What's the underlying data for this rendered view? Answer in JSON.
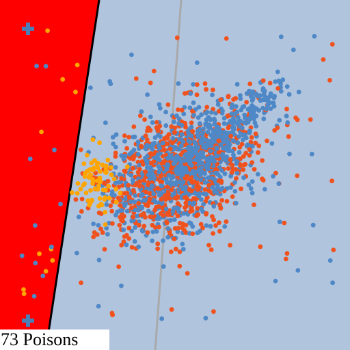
{
  "status_label": "73 Poisons",
  "colors": {
    "background": "#b0c4de",
    "attack_region": "#ff0000",
    "boundary": "#000000",
    "reference_line": "#a9a9a9",
    "clean_point_blue": "#4f88c6",
    "clean_point_orange": "#f0521e",
    "poison_point": "#ffa500",
    "cross_marker": "#4a7fb8",
    "label_box": "#ffffff"
  },
  "icons": {
    "cross_marker": "plus-icon"
  },
  "legend": {
    "point_groups": [
      "clean-blue",
      "clean-orange",
      "poison"
    ]
  }
}
